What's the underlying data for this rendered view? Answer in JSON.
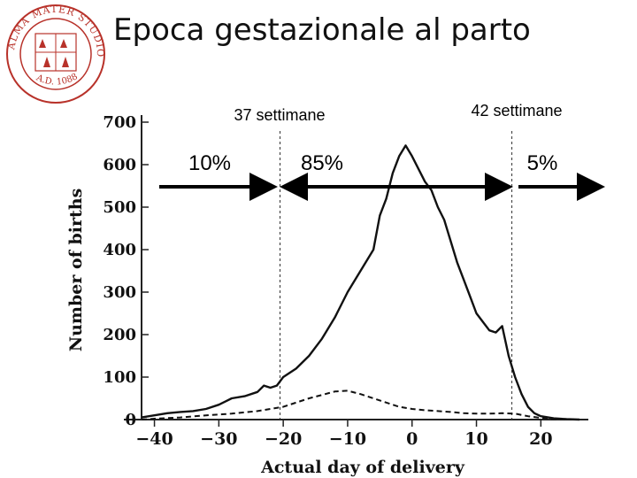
{
  "slide": {
    "title": "Epoca gestazionale al parto"
  },
  "seal": {
    "color": "#b8322a",
    "ring_text": "ALMA MATER STUDIORUM",
    "date_text": "A.D. 1088"
  },
  "annotations": {
    "week37": "37 settimane",
    "week42": "42 settimane",
    "pct_before": "10%",
    "pct_middle": "85%",
    "pct_after": "5%"
  },
  "chart_data": {
    "type": "line",
    "xlabel": "Actual day of delivery",
    "ylabel": "Number of births",
    "xlim": [
      -42,
      26
    ],
    "ylim": [
      0,
      700
    ],
    "xticks": [
      -40,
      -30,
      -20,
      -10,
      0,
      10,
      20
    ],
    "yticks": [
      0,
      100,
      200,
      300,
      400,
      500,
      600,
      700
    ],
    "xtick_labels": [
      "−40",
      "−30",
      "−20",
      "−10",
      "0",
      "10",
      "20"
    ],
    "ytick_labels": [
      "0",
      "100",
      "200",
      "300",
      "400",
      "500",
      "600",
      "700"
    ],
    "reference_lines_x": [
      -20.5,
      15.5
    ],
    "series": [
      {
        "style": "solid",
        "points": [
          [
            -42,
            5
          ],
          [
            -40,
            10
          ],
          [
            -38,
            15
          ],
          [
            -36,
            18
          ],
          [
            -34,
            20
          ],
          [
            -32,
            25
          ],
          [
            -30,
            35
          ],
          [
            -28,
            50
          ],
          [
            -26,
            55
          ],
          [
            -24,
            65
          ],
          [
            -23,
            80
          ],
          [
            -22,
            75
          ],
          [
            -21,
            80
          ],
          [
            -20,
            100
          ],
          [
            -18,
            120
          ],
          [
            -16,
            150
          ],
          [
            -14,
            190
          ],
          [
            -12,
            240
          ],
          [
            -10,
            300
          ],
          [
            -8,
            350
          ],
          [
            -6,
            400
          ],
          [
            -5,
            480
          ],
          [
            -4,
            520
          ],
          [
            -3,
            580
          ],
          [
            -2,
            620
          ],
          [
            -1,
            645
          ],
          [
            0,
            620
          ],
          [
            1,
            590
          ],
          [
            2,
            560
          ],
          [
            3,
            540
          ],
          [
            4,
            500
          ],
          [
            5,
            470
          ],
          [
            6,
            420
          ],
          [
            7,
            370
          ],
          [
            8,
            330
          ],
          [
            9,
            290
          ],
          [
            10,
            250
          ],
          [
            11,
            230
          ],
          [
            12,
            210
          ],
          [
            13,
            205
          ],
          [
            14,
            220
          ],
          [
            15,
            150
          ],
          [
            16,
            100
          ],
          [
            17,
            60
          ],
          [
            18,
            30
          ],
          [
            19,
            15
          ],
          [
            20,
            8
          ],
          [
            22,
            3
          ],
          [
            24,
            1
          ],
          [
            26,
            0
          ]
        ]
      },
      {
        "style": "dashed",
        "points": [
          [
            -42,
            0
          ],
          [
            -40,
            2
          ],
          [
            -36,
            5
          ],
          [
            -32,
            10
          ],
          [
            -28,
            14
          ],
          [
            -24,
            20
          ],
          [
            -20,
            30
          ],
          [
            -18,
            40
          ],
          [
            -16,
            50
          ],
          [
            -14,
            58
          ],
          [
            -12,
            66
          ],
          [
            -10,
            68
          ],
          [
            -8,
            60
          ],
          [
            -6,
            50
          ],
          [
            -4,
            40
          ],
          [
            -2,
            30
          ],
          [
            0,
            25
          ],
          [
            2,
            22
          ],
          [
            4,
            20
          ],
          [
            6,
            18
          ],
          [
            8,
            15
          ],
          [
            10,
            14
          ],
          [
            12,
            14
          ],
          [
            14,
            15
          ],
          [
            16,
            14
          ],
          [
            18,
            8
          ],
          [
            20,
            4
          ],
          [
            22,
            1
          ],
          [
            26,
            0
          ]
        ]
      }
    ]
  }
}
